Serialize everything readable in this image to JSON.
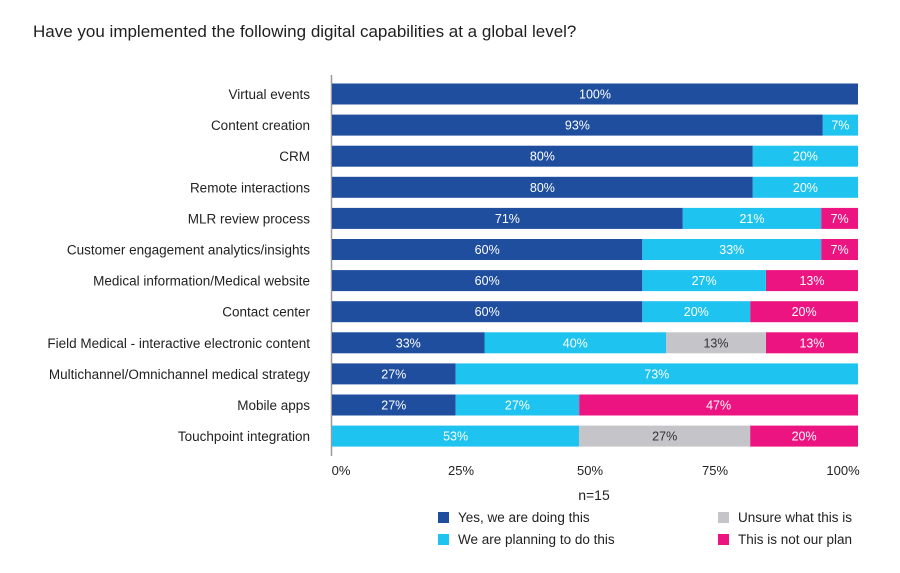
{
  "chart_data": {
    "type": "bar",
    "orientation": "horizontal",
    "stacked": true,
    "title": "Have you implemented the following digital capabilities at a global level?",
    "xlabel": "n=15",
    "ylabel": "",
    "xlim": [
      0,
      100
    ],
    "x_ticks": [
      "0%",
      "25%",
      "50%",
      "75%",
      "100%"
    ],
    "grid": false,
    "legend_position": "bottom-right",
    "categories": [
      "Virtual events",
      "Content creation",
      "CRM",
      "Remote interactions",
      "MLR review process",
      "Customer engagement analytics/insights",
      "Medical information/Medical website",
      "Contact center",
      "Field Medical - interactive electronic content",
      "Multichannel/Omnichannel medical strategy",
      "Mobile apps",
      "Touchpoint integration"
    ],
    "series": [
      {
        "name": "Yes, we are doing this",
        "color": "#1f4e9f",
        "values": [
          100,
          93,
          80,
          80,
          71,
          60,
          60,
          60,
          33,
          27,
          27,
          0
        ],
        "labels": [
          "100%",
          "93%",
          "80%",
          "80%",
          "71%",
          "60%",
          "60%",
          "60%",
          "33%",
          "27%",
          "27%",
          ""
        ],
        "widths": [
          100,
          93.3,
          80,
          80,
          66.7,
          59,
          59,
          59,
          29,
          23.5,
          23.5,
          0
        ]
      },
      {
        "name": "We are planning to do this",
        "color": "#1ec3ef",
        "values": [
          0,
          7,
          20,
          20,
          21,
          33,
          27,
          20,
          40,
          73,
          27,
          53
        ],
        "labels": [
          "",
          "7%",
          "20%",
          "20%",
          "21%",
          "33%",
          "27%",
          "20%",
          "40%",
          "73%",
          "27%",
          "53%"
        ],
        "widths": [
          0,
          6.7,
          20,
          20,
          26.3,
          34,
          23.5,
          20.5,
          34.5,
          76.5,
          23.5,
          47
        ]
      },
      {
        "name": "Unsure what this is",
        "color": "#c4c4c9",
        "values": [
          0,
          0,
          0,
          0,
          0,
          0,
          0,
          0,
          13,
          0,
          0,
          27
        ],
        "labels": [
          "",
          "",
          "",
          "",
          "",
          "",
          "",
          "",
          "13%",
          "",
          "",
          "27%"
        ],
        "widths": [
          0,
          0,
          0,
          0,
          0,
          0,
          0,
          0,
          19,
          0,
          0,
          32.5
        ]
      },
      {
        "name": "This is not our plan",
        "color": "#ec1480",
        "values": [
          0,
          0,
          0,
          0,
          7,
          7,
          13,
          20,
          13,
          0,
          47,
          20
        ],
        "labels": [
          "",
          "",
          "",
          "",
          "7%",
          "7%",
          "13%",
          "20%",
          "13%",
          "",
          "47%",
          "20%"
        ],
        "widths": [
          0,
          0,
          0,
          0,
          7,
          7,
          17.5,
          20.5,
          17.5,
          0,
          53,
          20.5
        ]
      }
    ]
  }
}
